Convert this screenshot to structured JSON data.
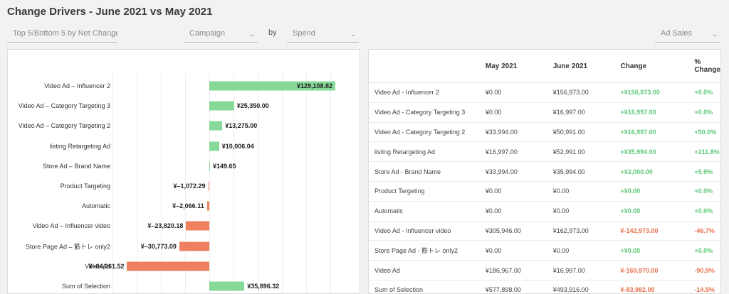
{
  "title": "Change Drivers - June 2021 vs May 2021",
  "controls": {
    "filter": "Top 5/Bottom 5 by Net Change",
    "dimension": "Campaign",
    "by": "by",
    "measure": "Spend",
    "metric": "Ad Sales"
  },
  "colors": {
    "positive": "#86d997",
    "negative": "#ee8060",
    "pos_text": "#5fc97a",
    "neg_text": "#e8734d"
  },
  "chart_data": {
    "type": "bar",
    "orientation": "horizontal",
    "categories": [
      "Video Ad – Influencer 2",
      "Video Ad – Category Targeting 3",
      "Video Ad – Category Targeting 2",
      "listing Retargeting Ad",
      "Store Ad – Brand Name",
      "Product Targeting",
      "Automatic",
      "Video Ad – Influencer video",
      "Store Page Ad – 筋トレ only2",
      "Video Ad",
      "Sum of Selection"
    ],
    "values": [
      129108.82,
      25350.0,
      13275.0,
      10006.04,
      149.65,
      -1072.29,
      -2066.11,
      -23820.18,
      -30773.09,
      -84261.52,
      35896.32
    ],
    "labels": [
      "¥129,108.82",
      "¥25,350.00",
      "¥13,275.00",
      "¥10,006.04",
      "¥149.65",
      "¥–1,072.29",
      "¥–2,066.11",
      "¥–23,820.18",
      "¥–30,773.09",
      "¥–84,261.52",
      "¥35,896.32"
    ],
    "xlim": [
      -84261.52,
      129108.82
    ]
  },
  "table": {
    "headers": [
      "",
      "May 2021",
      "June 2021",
      "Change",
      "% Change"
    ],
    "rows": [
      {
        "name": "Video Ad - Influencer 2",
        "may": "¥0.00",
        "june": "¥156,973.00",
        "change": "+¥156,973.00",
        "pct": "+0.0%",
        "dir": "pos"
      },
      {
        "name": "Video Ad - Category Targeting 3",
        "may": "¥0.00",
        "june": "¥16,997.00",
        "change": "+¥16,997.00",
        "pct": "+0.0%",
        "dir": "pos"
      },
      {
        "name": "Video Ad - Category Targeting 2",
        "may": "¥33,994.00",
        "june": "¥50,991.00",
        "change": "+¥16,997.00",
        "pct": "+50.0%",
        "dir": "pos"
      },
      {
        "name": "listing Retargeting Ad",
        "may": "¥16,997.00",
        "june": "¥52,991.00",
        "change": "+¥35,994.00",
        "pct": "+211.8%",
        "dir": "pos"
      },
      {
        "name": "Store Ad - Brand Name",
        "may": "¥33,994.00",
        "june": "¥35,994.00",
        "change": "+¥2,000.00",
        "pct": "+5.9%",
        "dir": "pos"
      },
      {
        "name": "Product Targeting",
        "may": "¥0.00",
        "june": "¥0.00",
        "change": "+¥0.00",
        "pct": "+0.0%",
        "dir": "pos"
      },
      {
        "name": "Automatic",
        "may": "¥0.00",
        "june": "¥0.00",
        "change": "+¥0.00",
        "pct": "+0.0%",
        "dir": "pos"
      },
      {
        "name": "Video Ad - Influencer video",
        "may": "¥305,946.00",
        "june": "¥162,973.00",
        "change": "¥-142,973.00",
        "pct": "-46.7%",
        "dir": "neg"
      },
      {
        "name": "Store Page Ad - 筋トレ only2",
        "may": "¥0.00",
        "june": "¥0.00",
        "change": "+¥0.00",
        "pct": "+0.0%",
        "dir": "pos"
      },
      {
        "name": "Video Ad",
        "may": "¥186,967.00",
        "june": "¥16,997.00",
        "change": "¥-169,970.00",
        "pct": "-90.9%",
        "dir": "neg"
      },
      {
        "name": "Sum of Selection",
        "may": "¥577,898.00",
        "june": "¥493,916.00",
        "change": "¥-83,982.00",
        "pct": "-14.5%",
        "dir": "neg"
      }
    ]
  }
}
